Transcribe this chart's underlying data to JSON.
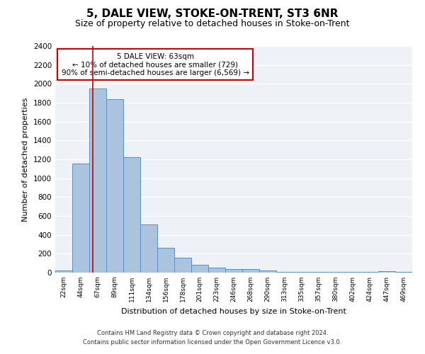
{
  "title": "5, DALE VIEW, STOKE-ON-TRENT, ST3 6NR",
  "subtitle": "Size of property relative to detached houses in Stoke-on-Trent",
  "xlabel": "Distribution of detached houses by size in Stoke-on-Trent",
  "ylabel": "Number of detached properties",
  "footer_line1": "Contains HM Land Registry data © Crown copyright and database right 2024.",
  "footer_line2": "Contains public sector information licensed under the Open Government Licence v3.0.",
  "categories": [
    "22sqm",
    "44sqm",
    "67sqm",
    "89sqm",
    "111sqm",
    "134sqm",
    "156sqm",
    "178sqm",
    "201sqm",
    "223sqm",
    "246sqm",
    "268sqm",
    "290sqm",
    "313sqm",
    "335sqm",
    "357sqm",
    "380sqm",
    "402sqm",
    "424sqm",
    "447sqm",
    "469sqm"
  ],
  "values": [
    25,
    1155,
    1950,
    1840,
    1220,
    510,
    265,
    155,
    80,
    55,
    35,
    35,
    20,
    10,
    8,
    5,
    5,
    5,
    5,
    15,
    5
  ],
  "bar_color": "#aac4de",
  "bar_edge_color": "#5a8fbf",
  "ylim": [
    0,
    2400
  ],
  "yticks": [
    0,
    200,
    400,
    600,
    800,
    1000,
    1200,
    1400,
    1600,
    1800,
    2000,
    2200,
    2400
  ],
  "red_line_x": 1.72,
  "annotation_text": "5 DALE VIEW: 63sqm\n← 10% of detached houses are smaller (729)\n90% of semi-detached houses are larger (6,569) →",
  "annotation_box_color": "#ffffff",
  "annotation_box_edge_color": "#cc0000",
  "background_color": "#eef2f7",
  "grid_color": "#ffffff",
  "title_fontsize": 11,
  "subtitle_fontsize": 9
}
